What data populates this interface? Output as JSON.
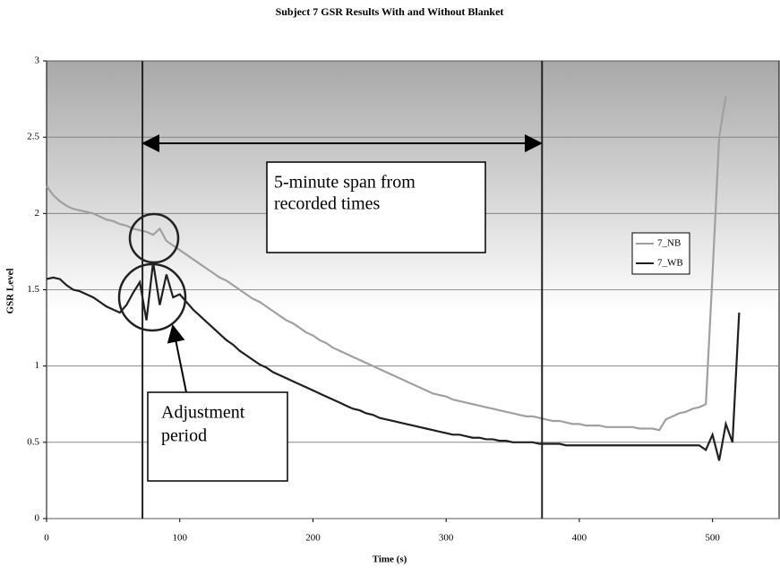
{
  "chart_data": {
    "type": "line",
    "title": "Subject 7 GSR Results With and Without Blanket",
    "xlabel": "Time (s)",
    "ylabel": "GSR Level",
    "x": [
      0,
      5,
      10,
      15,
      20,
      25,
      30,
      35,
      40,
      45,
      50,
      55,
      60,
      65,
      70,
      75,
      80,
      85,
      90,
      95,
      100,
      105,
      110,
      115,
      120,
      125,
      130,
      135,
      140,
      145,
      150,
      155,
      160,
      165,
      170,
      175,
      180,
      185,
      190,
      195,
      200,
      205,
      210,
      215,
      220,
      225,
      230,
      235,
      240,
      245,
      250,
      255,
      260,
      265,
      270,
      275,
      280,
      285,
      290,
      295,
      300,
      305,
      310,
      315,
      320,
      325,
      330,
      335,
      340,
      345,
      350,
      355,
      360,
      365,
      370,
      375,
      380,
      385,
      390,
      395,
      400,
      405,
      410,
      415,
      420,
      425,
      430,
      435,
      440,
      445,
      450,
      455,
      460,
      465,
      470,
      475,
      480,
      485,
      490,
      495,
      500,
      505,
      510,
      515,
      520
    ],
    "series": [
      {
        "name": "7_NB",
        "color": "#a0a0a0",
        "values": [
          2.18,
          2.12,
          2.08,
          2.05,
          2.03,
          2.02,
          2.01,
          2.0,
          1.98,
          1.96,
          1.95,
          1.93,
          1.92,
          1.9,
          1.89,
          1.88,
          1.86,
          1.9,
          1.82,
          1.79,
          1.76,
          1.73,
          1.7,
          1.67,
          1.64,
          1.61,
          1.58,
          1.56,
          1.53,
          1.5,
          1.47,
          1.44,
          1.42,
          1.39,
          1.36,
          1.33,
          1.3,
          1.28,
          1.25,
          1.22,
          1.2,
          1.17,
          1.15,
          1.12,
          1.1,
          1.08,
          1.06,
          1.04,
          1.02,
          1.0,
          0.98,
          0.96,
          0.94,
          0.92,
          0.9,
          0.88,
          0.86,
          0.84,
          0.82,
          0.81,
          0.8,
          0.78,
          0.77,
          0.76,
          0.75,
          0.74,
          0.73,
          0.72,
          0.71,
          0.7,
          0.69,
          0.68,
          0.67,
          0.67,
          0.66,
          0.65,
          0.64,
          0.64,
          0.63,
          0.62,
          0.62,
          0.61,
          0.61,
          0.61,
          0.6,
          0.6,
          0.6,
          0.6,
          0.6,
          0.59,
          0.59,
          0.59,
          0.58,
          0.65,
          0.67,
          0.69,
          0.7,
          0.72,
          0.73,
          0.75,
          1.6,
          2.5,
          2.77,
          null,
          null
        ]
      },
      {
        "name": "7_WB",
        "color": "#202020",
        "values": [
          1.57,
          1.58,
          1.57,
          1.53,
          1.5,
          1.49,
          1.47,
          1.45,
          1.42,
          1.39,
          1.37,
          1.35,
          1.4,
          1.48,
          1.55,
          1.3,
          1.68,
          1.4,
          1.6,
          1.45,
          1.47,
          1.42,
          1.37,
          1.33,
          1.29,
          1.25,
          1.21,
          1.17,
          1.14,
          1.1,
          1.07,
          1.04,
          1.01,
          0.99,
          0.96,
          0.94,
          0.92,
          0.9,
          0.88,
          0.86,
          0.84,
          0.82,
          0.8,
          0.78,
          0.76,
          0.74,
          0.72,
          0.71,
          0.69,
          0.68,
          0.66,
          0.65,
          0.64,
          0.63,
          0.62,
          0.61,
          0.6,
          0.59,
          0.58,
          0.57,
          0.56,
          0.55,
          0.55,
          0.54,
          0.53,
          0.53,
          0.52,
          0.52,
          0.51,
          0.51,
          0.5,
          0.5,
          0.5,
          0.5,
          0.49,
          0.49,
          0.49,
          0.49,
          0.48,
          0.48,
          0.48,
          0.48,
          0.48,
          0.48,
          0.48,
          0.48,
          0.48,
          0.48,
          0.48,
          0.48,
          0.48,
          0.48,
          0.48,
          0.48,
          0.48,
          0.48,
          0.48,
          0.48,
          0.48,
          0.45,
          0.55,
          0.38,
          0.62,
          0.5,
          1.35
        ]
      }
    ],
    "xlim": [
      0,
      550
    ],
    "ylim": [
      0,
      3
    ],
    "xticks": [
      0,
      100,
      200,
      300,
      400,
      500
    ],
    "yticks": [
      0,
      0.5,
      1,
      1.5,
      2,
      2.5,
      3
    ],
    "grid": true,
    "legend": "right",
    "vlines": [
      72,
      372
    ],
    "annotations": [
      {
        "lines": [
          "5-minute span from",
          "recorded times"
        ]
      },
      {
        "lines": [
          "Adjustment",
          "period"
        ]
      }
    ]
  }
}
